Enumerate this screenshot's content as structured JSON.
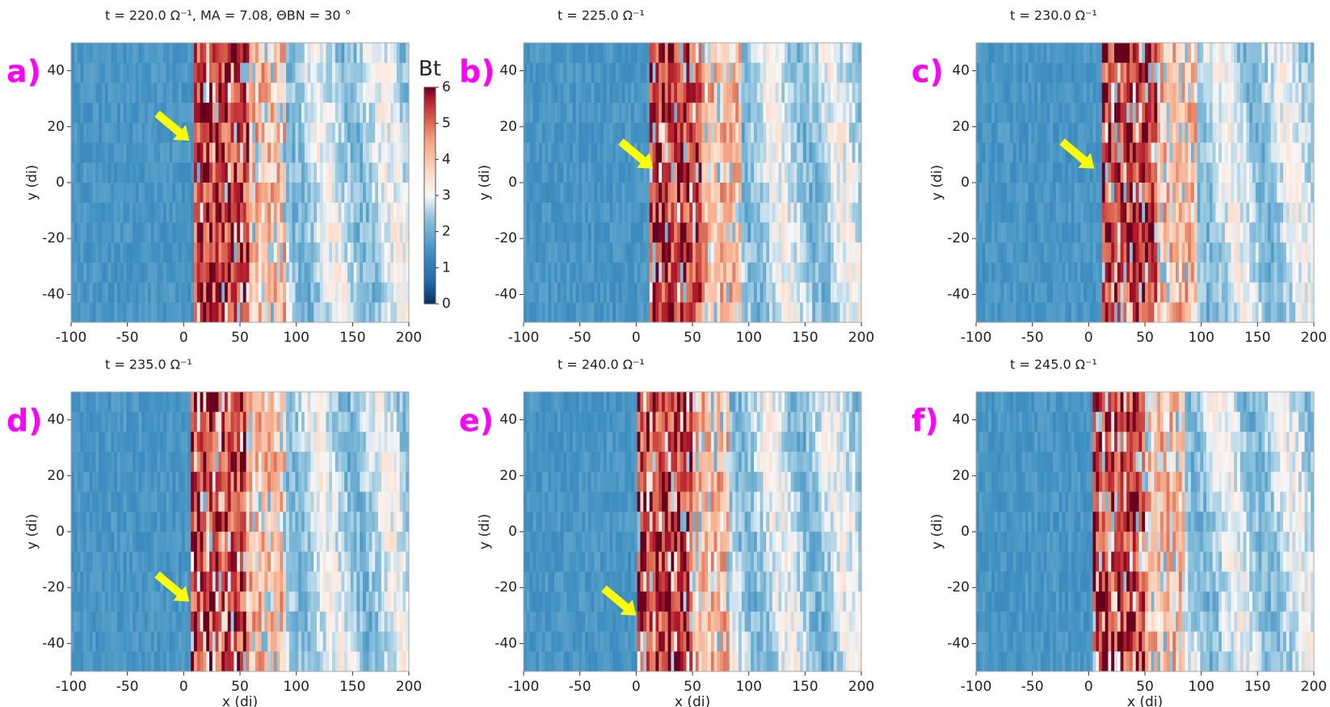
{
  "chart_data": [
    {
      "type": "heatmap",
      "title": "t = 220.0 Ω⁻¹, MA = 7.08, ΘBN = 30 °",
      "panel_label": "a)",
      "ylabel": "y (di)",
      "xlim": [
        -100,
        200
      ],
      "ylim": [
        -50,
        50
      ],
      "xticks": [
        -100,
        -50,
        0,
        50,
        100,
        150,
        200
      ],
      "yticks": [
        -40,
        -20,
        0,
        20,
        40
      ],
      "colorbar": {
        "label": "Bt",
        "lim": [
          0,
          6
        ],
        "ticks": [
          0,
          1,
          2,
          3,
          4,
          5,
          6
        ]
      }
    },
    {
      "type": "heatmap",
      "title": "t = 225.0 Ω⁻¹",
      "panel_label": "b)",
      "ylabel": "y (di)",
      "xlim": [
        -100,
        200
      ],
      "ylim": [
        -50,
        50
      ],
      "xticks": [
        -100,
        -50,
        0,
        50,
        100,
        150,
        200
      ],
      "yticks": [
        -40,
        -20,
        0,
        20,
        40
      ]
    },
    {
      "type": "heatmap",
      "title": "t = 230.0 Ω⁻¹",
      "panel_label": "c)",
      "ylabel": "y (di)",
      "xlim": [
        -100,
        200
      ],
      "ylim": [
        -50,
        50
      ],
      "xticks": [
        -100,
        -50,
        0,
        50,
        100,
        150,
        200
      ],
      "yticks": [
        -40,
        -20,
        0,
        20,
        40
      ]
    },
    {
      "type": "heatmap",
      "title": "t = 235.0 Ω⁻¹",
      "panel_label": "d)",
      "ylabel": "y (di)",
      "xlabel": "x (di)",
      "xlim": [
        -100,
        200
      ],
      "ylim": [
        -50,
        50
      ],
      "xticks": [
        -100,
        -50,
        0,
        50,
        100,
        150,
        200
      ],
      "yticks": [
        -40,
        -20,
        0,
        20,
        40
      ]
    },
    {
      "type": "heatmap",
      "title": "t = 240.0 Ω⁻¹",
      "panel_label": "e)",
      "ylabel": "y (di)",
      "xlabel": "x (di)",
      "xlim": [
        -100,
        200
      ],
      "ylim": [
        -50,
        50
      ],
      "xticks": [
        -100,
        -50,
        0,
        50,
        100,
        150,
        200
      ],
      "yticks": [
        -40,
        -20,
        0,
        20,
        40
      ]
    },
    {
      "type": "heatmap",
      "title": "t = 245.0 Ω⁻¹",
      "panel_label": "f)",
      "ylabel": "y (di)",
      "xlabel": "x (di)",
      "xlim": [
        -100,
        200
      ],
      "ylim": [
        -50,
        50
      ],
      "xticks": [
        -100,
        -50,
        0,
        50,
        100,
        150,
        200
      ],
      "yticks": [
        -40,
        -20,
        0,
        20,
        40
      ]
    }
  ]
}
